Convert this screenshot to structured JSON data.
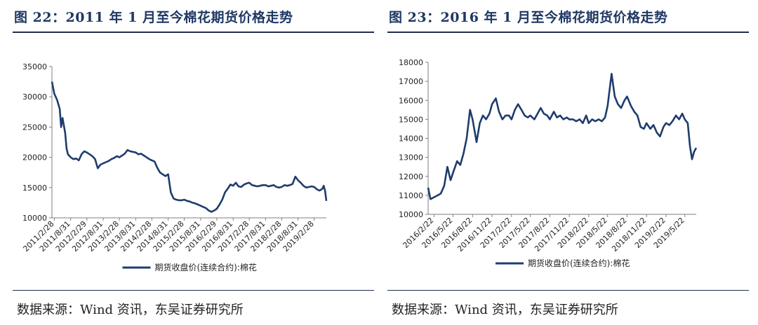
{
  "figures": [
    {
      "title": "图 22：2011 年 1 月至今棉花期货价格走势",
      "source": "数据来源：Wind 资讯，东吴证券研究所",
      "chart_data": {
        "type": "line",
        "title": "",
        "ylim": [
          10000,
          35000
        ],
        "yticks": [
          10000,
          15000,
          20000,
          25000,
          30000,
          35000
        ],
        "xticks": [
          "2011/2/28",
          "2011/8/31",
          "2012/2/29",
          "2012/8/31",
          "2013/2/28",
          "2013/8/31",
          "2014/2/28",
          "2014/8/31",
          "2015/2/28",
          "2015/8/31",
          "2016/2/29",
          "2016/8/31",
          "2017/2/28",
          "2017/8/31",
          "2018/2/28",
          "2018/8/31",
          "2019/2/28"
        ],
        "legend": "top-bottom",
        "color": "#1f3c6e",
        "series": [
          {
            "name": "期货收盘价(连续合约):棉花",
            "x": [
              "2011/2/1",
              "2011/2/28",
              "2011/3/31",
              "2011/4/30",
              "2011/5/15",
              "2011/5/31",
              "2011/6/30",
              "2011/7/15",
              "2011/7/31",
              "2011/8/31",
              "2011/9/30",
              "2011/10/31",
              "2011/11/30",
              "2011/12/31",
              "2012/1/31",
              "2012/2/29",
              "2012/3/31",
              "2012/4/30",
              "2012/5/31",
              "2012/6/30",
              "2012/7/31",
              "2012/8/31",
              "2012/9/30",
              "2012/10/31",
              "2012/11/30",
              "2012/12/31",
              "2013/1/31",
              "2013/2/28",
              "2013/3/31",
              "2013/4/30",
              "2013/5/31",
              "2013/6/30",
              "2013/7/31",
              "2013/8/31",
              "2013/9/30",
              "2013/10/31",
              "2013/11/30",
              "2013/12/31",
              "2014/1/31",
              "2014/2/28",
              "2014/3/31",
              "2014/4/30",
              "2014/5/31",
              "2014/6/30",
              "2014/7/31",
              "2014/8/31",
              "2014/9/30",
              "2014/10/31",
              "2014/11/30",
              "2014/12/31",
              "2015/1/31",
              "2015/2/28",
              "2015/3/31",
              "2015/4/30",
              "2015/5/31",
              "2015/6/30",
              "2015/7/31",
              "2015/8/31",
              "2015/9/30",
              "2015/10/31",
              "2015/11/30",
              "2015/12/31",
              "2016/1/31",
              "2016/2/29",
              "2016/3/31",
              "2016/4/30",
              "2016/5/31",
              "2016/6/30",
              "2016/7/31",
              "2016/8/31",
              "2016/9/30",
              "2016/10/31",
              "2016/11/30",
              "2016/12/31",
              "2017/1/31",
              "2017/2/28",
              "2017/3/31",
              "2017/4/30",
              "2017/5/31",
              "2017/6/30",
              "2017/7/31",
              "2017/8/31",
              "2017/9/30",
              "2017/10/31",
              "2017/11/30",
              "2017/12/31",
              "2018/1/31",
              "2018/2/28",
              "2018/3/31",
              "2018/4/30",
              "2018/5/31",
              "2018/6/30",
              "2018/7/31",
              "2018/8/31",
              "2018/9/30",
              "2018/10/31",
              "2018/11/30",
              "2018/12/31",
              "2019/1/31",
              "2019/2/28",
              "2019/3/31",
              "2019/4/30",
              "2019/5/31",
              "2019/6/15",
              "2019/6/30",
              "2019/7/15"
            ],
            "values": [
              32500,
              30500,
              29500,
              28000,
              25000,
              26500,
              24000,
              21500,
              20500,
              20000,
              19700,
              19800,
              19500,
              20500,
              21000,
              20800,
              20500,
              20200,
              19700,
              18200,
              18800,
              19000,
              19200,
              19400,
              19700,
              19900,
              20200,
              20000,
              20300,
              20600,
              21200,
              21000,
              20900,
              20800,
              20500,
              20600,
              20300,
              20000,
              19700,
              19500,
              19300,
              18300,
              17500,
              17200,
              16900,
              17200,
              14200,
              13200,
              13000,
              12900,
              12900,
              13000,
              12800,
              12700,
              12500,
              12400,
              12200,
              12000,
              11800,
              11600,
              11200,
              11000,
              11200,
              11500,
              12200,
              13000,
              14200,
              14800,
              15500,
              15300,
              15800,
              15200,
              15100,
              15500,
              15700,
              15800,
              15400,
              15300,
              15200,
              15300,
              15400,
              15400,
              15200,
              15300,
              15400,
              15100,
              15000,
              15100,
              15400,
              15300,
              15400,
              15600,
              16800,
              16200,
              15800,
              15300,
              15000,
              15100,
              15200,
              15100,
              14700,
              14500,
              14800,
              15300,
              14500,
              12800
            ]
          }
        ]
      }
    },
    {
      "title": "图 23：2016 年 1 月至今棉花期货价格走势",
      "source": "数据来源：Wind 资讯，东吴证券研究所",
      "chart_data": {
        "type": "line",
        "title": "",
        "ylim": [
          10000,
          18000
        ],
        "yticks": [
          10000,
          11000,
          12000,
          13000,
          14000,
          15000,
          16000,
          17000,
          18000
        ],
        "xticks": [
          "2016/2/22",
          "2016/5/22",
          "2016/8/22",
          "2016/11/22",
          "2017/2/22",
          "2017/5/22",
          "2017/8/22",
          "2017/11/22",
          "2018/2/22",
          "2018/5/22",
          "2018/8/22",
          "2018/11/22",
          "2019/2/22",
          "2019/5/22"
        ],
        "legend": "top-bottom",
        "color": "#1f3c6e",
        "series": [
          {
            "name": "期货收盘价(连续合约):棉花",
            "x": [
              "2016/1/25",
              "2016/2/5",
              "2016/2/22",
              "2016/3/10",
              "2016/3/25",
              "2016/4/10",
              "2016/4/25",
              "2016/5/10",
              "2016/5/22",
              "2016/6/10",
              "2016/6/25",
              "2016/7/10",
              "2016/7/25",
              "2016/8/10",
              "2016/8/22",
              "2016/9/10",
              "2016/9/25",
              "2016/10/10",
              "2016/10/25",
              "2016/11/10",
              "2016/11/22",
              "2016/12/10",
              "2016/12/25",
              "2017/1/10",
              "2017/1/25",
              "2017/2/10",
              "2017/2/22",
              "2017/3/10",
              "2017/3/25",
              "2017/4/10",
              "2017/4/25",
              "2017/5/10",
              "2017/5/22",
              "2017/6/10",
              "2017/6/25",
              "2017/7/10",
              "2017/7/25",
              "2017/8/10",
              "2017/8/22",
              "2017/9/10",
              "2017/9/25",
              "2017/10/10",
              "2017/10/25",
              "2017/11/10",
              "2017/11/22",
              "2017/12/10",
              "2017/12/25",
              "2018/1/10",
              "2018/1/25",
              "2018/2/10",
              "2018/2/22",
              "2018/3/10",
              "2018/3/25",
              "2018/4/10",
              "2018/4/25",
              "2018/5/10",
              "2018/5/22",
              "2018/6/10",
              "2018/6/25",
              "2018/7/10",
              "2018/7/25",
              "2018/8/10",
              "2018/8/22",
              "2018/9/10",
              "2018/9/25",
              "2018/10/10",
              "2018/10/25",
              "2018/11/10",
              "2018/11/22",
              "2018/12/10",
              "2018/12/25",
              "2019/1/10",
              "2019/1/25",
              "2019/2/10",
              "2019/2/22",
              "2019/3/10",
              "2019/3/25",
              "2019/4/10",
              "2019/4/25",
              "2019/5/10",
              "2019/5/22",
              "2019/6/5",
              "2019/6/15",
              "2019/6/25",
              "2019/7/5",
              "2019/7/15"
            ],
            "values": [
              11400,
              10800,
              10900,
              11000,
              11100,
              11500,
              12500,
              11800,
              12200,
              12800,
              12600,
              13200,
              14000,
              15500,
              15000,
              13800,
              14800,
              15200,
              15000,
              15300,
              15800,
              16100,
              15400,
              15000,
              15200,
              15200,
              15000,
              15500,
              15800,
              15500,
              15200,
              15100,
              15200,
              15000,
              15300,
              15600,
              15300,
              15200,
              15000,
              15400,
              15100,
              15200,
              15000,
              15100,
              15000,
              15000,
              14900,
              15000,
              14800,
              15200,
              14800,
              15000,
              14900,
              15000,
              14900,
              15100,
              15700,
              17400,
              16200,
              15800,
              15600,
              16000,
              16200,
              15700,
              15400,
              15200,
              14600,
              14500,
              14800,
              14500,
              14700,
              14300,
              14100,
              14600,
              14800,
              14700,
              14900,
              15200,
              15000,
              15300,
              15000,
              14800,
              13600,
              12900,
              13300,
              13500
            ]
          }
        ]
      }
    }
  ]
}
